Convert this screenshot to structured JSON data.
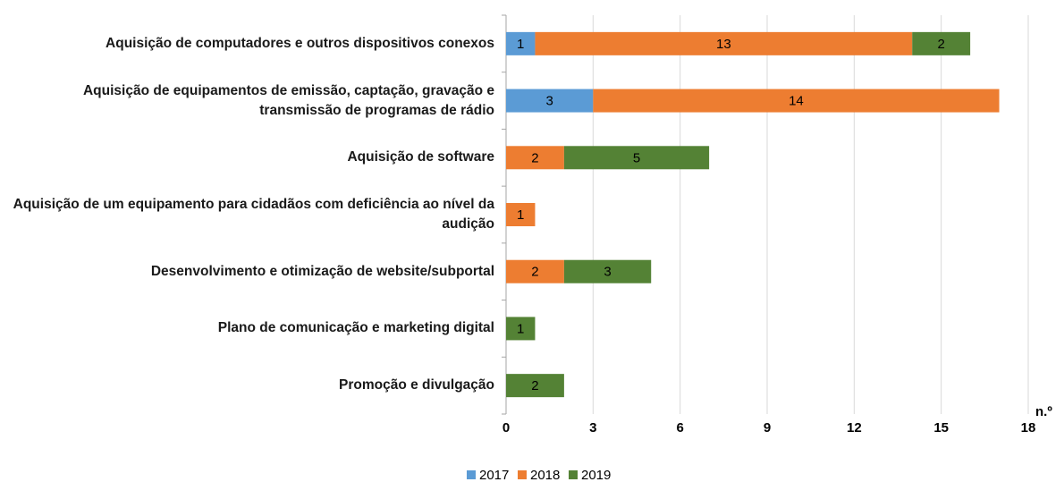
{
  "chart_data": {
    "type": "stacked_bar_horizontal",
    "categories": [
      "Aquisição de computadores e outros dispositivos conexos",
      "Aquisição de equipamentos de emissão, captação, gravação e transmissão de programas de rádio",
      "Aquisição de software",
      "Aquisição de um equipamento para cidadãos com deficiência ao nível da audição",
      "Desenvolvimento e otimização de website/subportal",
      "Plano de comunicação e marketing digital",
      "Promoção e divulgação"
    ],
    "series": [
      {
        "name": "2017",
        "color": "#5b9bd5",
        "values": [
          1,
          3,
          null,
          null,
          null,
          null,
          null
        ]
      },
      {
        "name": "2018",
        "color": "#ed7d31",
        "values": [
          13,
          14,
          2,
          1,
          2,
          null,
          null
        ]
      },
      {
        "name": "2019",
        "color": "#548235",
        "values": [
          2,
          null,
          5,
          null,
          3,
          1,
          2
        ]
      }
    ],
    "x_label": "n.º",
    "xlim": [
      0,
      18
    ],
    "xticks": [
      0,
      3,
      6,
      9,
      12,
      15,
      18
    ],
    "grid": true
  }
}
